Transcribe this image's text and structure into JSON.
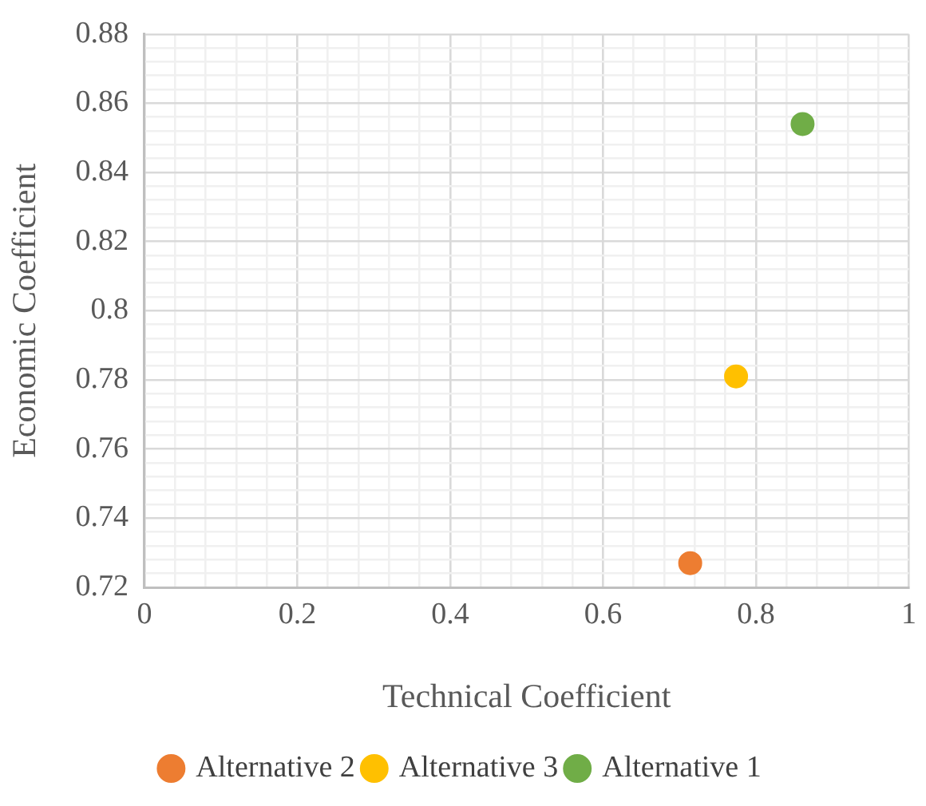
{
  "chart_data": {
    "type": "scatter",
    "xlabel": "Technical Coefficient",
    "ylabel": "Economic Coefficient",
    "series": [
      {
        "name": "Alternative 2",
        "color": "#ed7d31",
        "x": [
          0.714
        ],
        "values": [
          0.727
        ]
      },
      {
        "name": "Alternative 3",
        "color": "#ffc000",
        "x": [
          0.774
        ],
        "values": [
          0.781
        ]
      },
      {
        "name": "Alternative 1",
        "color": "#70ad47",
        "x": [
          0.861
        ],
        "values": [
          0.854
        ]
      }
    ],
    "xlim": [
      0,
      1
    ],
    "xticks": [
      0,
      {
        "value": 0.04,
        "label": null
      },
      {
        "value": 0.08,
        "label": null
      },
      {
        "value": 0.12,
        "label": null
      },
      {
        "value": 0.16,
        "label": null
      },
      0.2,
      {
        "value": 0.24,
        "label": null
      },
      {
        "value": 0.28,
        "label": null
      },
      {
        "value": 0.32,
        "label": null
      },
      {
        "value": 0.36,
        "label": null
      },
      0.4,
      {
        "value": 0.44,
        "label": null
      },
      {
        "value": 0.48,
        "label": null
      },
      {
        "value": 0.52,
        "label": null
      },
      {
        "value": 0.56,
        "label": null
      },
      0.6,
      {
        "value": 0.64,
        "label": null
      },
      {
        "value": 0.68,
        "label": null
      },
      {
        "value": 0.72,
        "label": null
      },
      {
        "value": 0.76,
        "label": null
      },
      0.8,
      {
        "value": 0.84,
        "label": null
      },
      {
        "value": 0.88,
        "label": null
      },
      {
        "value": 0.92,
        "label": null
      },
      {
        "value": 0.96,
        "label": null
      },
      1
    ],
    "ylim": [
      0.72,
      0.88
    ],
    "yticks": [
      0.72,
      {
        "value": 0.724,
        "label": null
      },
      {
        "value": 0.728,
        "label": null
      },
      {
        "value": 0.732,
        "label": null
      },
      {
        "value": 0.736,
        "label": null
      },
      0.74,
      {
        "value": 0.744,
        "label": null
      },
      {
        "value": 0.748,
        "label": null
      },
      {
        "value": 0.752,
        "label": null
      },
      {
        "value": 0.756,
        "label": null
      },
      0.76,
      {
        "value": 0.764,
        "label": null
      },
      {
        "value": 0.768,
        "label": null
      },
      {
        "value": 0.772,
        "label": null
      },
      {
        "value": 0.776,
        "label": null
      },
      0.78,
      {
        "value": 0.784,
        "label": null
      },
      {
        "value": 0.788,
        "label": null
      },
      {
        "value": 0.792,
        "label": null
      },
      {
        "value": 0.796,
        "label": null
      },
      0.8,
      {
        "value": 0.804,
        "label": null
      },
      {
        "value": 0.808,
        "label": null
      },
      {
        "value": 0.812,
        "label": null
      },
      {
        "value": 0.816,
        "label": null
      },
      0.82,
      {
        "value": 0.824,
        "label": null
      },
      {
        "value": 0.828,
        "label": null
      },
      {
        "value": 0.832,
        "label": null
      },
      {
        "value": 0.836,
        "label": null
      },
      0.84,
      {
        "value": 0.844,
        "label": null
      },
      {
        "value": 0.848,
        "label": null
      },
      {
        "value": 0.852,
        "label": null
      },
      {
        "value": 0.856,
        "label": null
      },
      0.86,
      {
        "value": 0.864,
        "label": null
      },
      {
        "value": 0.868,
        "label": null
      },
      {
        "value": 0.872,
        "label": null
      },
      {
        "value": 0.876,
        "label": null
      },
      0.88
    ],
    "grid": true,
    "legend": "bottom",
    "marker": "circle"
  }
}
